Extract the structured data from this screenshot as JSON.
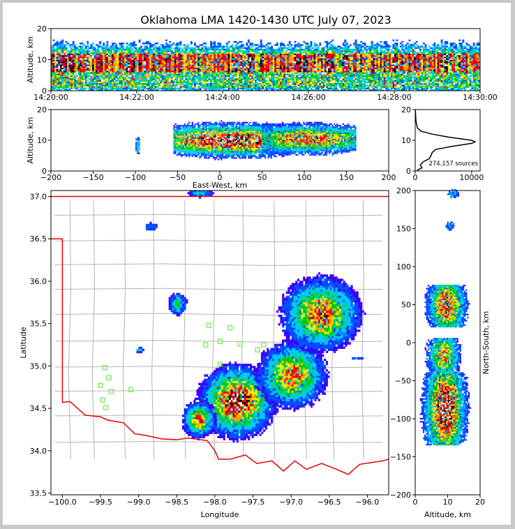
{
  "title": "Oklahoma LMA 1420-1430 UTC July 07, 2023",
  "colors": {
    "state_border": "#e00000",
    "county_lines": "#b4b4b4",
    "station_marker": "#66ee44",
    "density_scale": [
      "#3b00ff",
      "#0050ff",
      "#00c8ff",
      "#00d2a0",
      "#00c800",
      "#f0f000",
      "#ffa000",
      "#ff0000",
      "#c80040",
      "#000000",
      "#ffffff"
    ]
  },
  "chart_data": [
    {
      "id": "time_height",
      "type": "heatmap",
      "ylabel": "Altitude, km",
      "xlim": [
        "14:20:00",
        "14:30:00"
      ],
      "ylim": [
        0,
        20
      ],
      "xticks": [
        "14:20:00",
        "14:22:00",
        "14:24:00",
        "14:26:00",
        "14:28:00",
        "14:30:00"
      ],
      "yticks": [
        "0",
        "10",
        "20"
      ],
      "core_altitude_range_km": [
        6,
        12
      ]
    },
    {
      "id": "ew_height",
      "type": "heatmap",
      "xlabel": "East-West, km",
      "ylabel": "Altitude, km",
      "xlim": [
        -200,
        200
      ],
      "ylim": [
        0,
        20
      ],
      "xticks": [
        "−200",
        "−150",
        "−100",
        "−50",
        "0",
        "50",
        "100",
        "150",
        "200"
      ],
      "yticks": [
        "0",
        "10",
        "20"
      ],
      "clusters": [
        {
          "x_range": [
            -100,
            -95
          ],
          "z_range": [
            3,
            12
          ],
          "peak": 0.35
        },
        {
          "x_range": [
            -55,
            80
          ],
          "z_range": [
            2,
            16
          ],
          "peak": 1.0
        },
        {
          "x_range": [
            50,
            160
          ],
          "z_range": [
            3,
            16
          ],
          "peak": 0.8
        }
      ]
    },
    {
      "id": "altitude_histogram",
      "type": "line",
      "annotation": "274,157 sources",
      "xlim": [
        0,
        11500
      ],
      "ylim": [
        0,
        20
      ],
      "xticks": [
        "0",
        "10000"
      ],
      "yticks": [
        "0",
        "10",
        "20"
      ],
      "profile": [
        {
          "alt": 0.2,
          "count": 300
        },
        {
          "alt": 1,
          "count": 1200
        },
        {
          "alt": 2,
          "count": 900
        },
        {
          "alt": 3,
          "count": 1400
        },
        {
          "alt": 4,
          "count": 2500
        },
        {
          "alt": 5,
          "count": 2800
        },
        {
          "alt": 6,
          "count": 3000
        },
        {
          "alt": 7,
          "count": 3600
        },
        {
          "alt": 8,
          "count": 6500
        },
        {
          "alt": 9,
          "count": 10000
        },
        {
          "alt": 9.5,
          "count": 10600
        },
        {
          "alt": 10,
          "count": 10000
        },
        {
          "alt": 11,
          "count": 6000
        },
        {
          "alt": 12,
          "count": 3000
        },
        {
          "alt": 13,
          "count": 1000
        },
        {
          "alt": 14,
          "count": 400
        },
        {
          "alt": 16,
          "count": 150
        },
        {
          "alt": 18,
          "count": 80
        },
        {
          "alt": 20,
          "count": 30
        }
      ]
    },
    {
      "id": "plan_view",
      "type": "heatmap",
      "xlabel": "Longitude",
      "ylabel": "Latitude",
      "xlim": [
        -100.15,
        -95.72
      ],
      "ylim": [
        33.48,
        37.07
      ],
      "xticks": [
        "−100.0",
        "−99.5",
        "−99.0",
        "−98.5",
        "−98.0",
        "−97.5",
        "−97.0",
        "−96.5",
        "−96.0"
      ],
      "yticks": [
        "33.5",
        "34.0",
        "34.5",
        "35.0",
        "35.5",
        "36.0",
        "36.5",
        "37.0"
      ],
      "storms": [
        {
          "lon": -97.72,
          "lat": 34.57,
          "sx": 0.22,
          "sy": 0.19,
          "peak": 1.0
        },
        {
          "lon": -98.22,
          "lat": 34.36,
          "sx": 0.1,
          "sy": 0.1,
          "peak": 0.75
        },
        {
          "lon": -97.0,
          "lat": 34.88,
          "sx": 0.21,
          "sy": 0.18,
          "peak": 0.75
        },
        {
          "lon": -96.62,
          "lat": 35.6,
          "sx": 0.24,
          "sy": 0.2,
          "peak": 0.8
        },
        {
          "lon": -98.5,
          "lat": 35.72,
          "sx": 0.06,
          "sy": 0.07,
          "peak": 0.45
        },
        {
          "lon": -99.0,
          "lat": 35.18,
          "sx": 0.03,
          "sy": 0.02,
          "peak": 0.3
        },
        {
          "lon": -98.85,
          "lat": 36.63,
          "sx": 0.06,
          "sy": 0.03,
          "peak": 0.2
        },
        {
          "lon": -98.2,
          "lat": 37.03,
          "sx": 0.1,
          "sy": 0.03,
          "peak": 0.3
        },
        {
          "lon": -96.15,
          "lat": 35.08,
          "sx": 0.05,
          "sy": 0.01,
          "peak": 0.2
        }
      ],
      "stations": [
        {
          "lon": -98.08,
          "lat": 35.48
        },
        {
          "lon": -97.8,
          "lat": 35.45
        },
        {
          "lon": -98.12,
          "lat": 35.25
        },
        {
          "lon": -97.93,
          "lat": 35.29
        },
        {
          "lon": -97.67,
          "lat": 35.26
        },
        {
          "lon": -97.44,
          "lat": 35.19
        },
        {
          "lon": -97.36,
          "lat": 35.25
        },
        {
          "lon": -97.93,
          "lat": 35.02
        },
        {
          "lon": -99.44,
          "lat": 34.98
        },
        {
          "lon": -99.39,
          "lat": 34.86
        },
        {
          "lon": -99.5,
          "lat": 34.77
        },
        {
          "lon": -99.36,
          "lat": 34.7
        },
        {
          "lon": -99.1,
          "lat": 34.72
        },
        {
          "lon": -99.47,
          "lat": 34.6
        },
        {
          "lon": -99.43,
          "lat": 34.51
        }
      ]
    },
    {
      "id": "ns_height",
      "type": "heatmap",
      "xlabel": "Altitude, km",
      "ylabel": "North-South, km",
      "xlim": [
        0,
        20
      ],
      "ylim": [
        -200,
        200
      ],
      "xticks": [
        "0",
        "10",
        "20"
      ],
      "yticks": [
        "−200",
        "−150",
        "−100",
        "−50",
        "0",
        "50",
        "100",
        "150",
        "200"
      ],
      "clusters": [
        {
          "y_range": [
            -135,
            -40
          ],
          "z_range": [
            1,
            17
          ],
          "peak": 1.0
        },
        {
          "y_range": [
            -40,
            5
          ],
          "z_range": [
            2,
            15
          ],
          "peak": 0.7
        },
        {
          "y_range": [
            20,
            75
          ],
          "z_range": [
            2,
            17
          ],
          "peak": 0.85
        },
        {
          "y_range": [
            147,
            158
          ],
          "z_range": [
            8,
            13
          ],
          "peak": 0.25
        },
        {
          "y_range": [
            190,
            200
          ],
          "z_range": [
            9,
            14
          ],
          "peak": 0.3
        }
      ]
    }
  ]
}
